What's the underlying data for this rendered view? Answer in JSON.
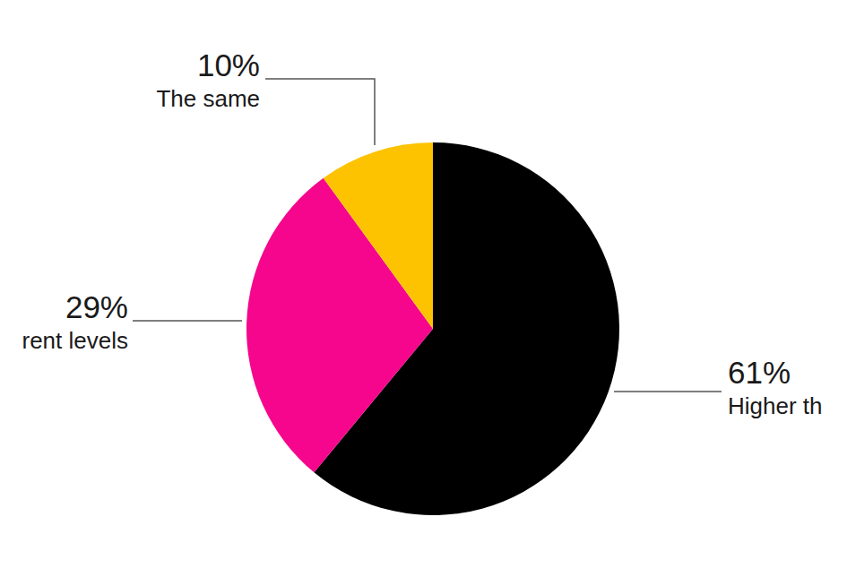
{
  "chart_data": {
    "type": "pie",
    "categories": [
      "Higher th",
      "rent levels",
      "The same"
    ],
    "values": [
      61,
      29,
      10
    ],
    "value_labels": [
      "61%",
      "29%",
      "10%"
    ],
    "colors": [
      "#000000",
      "#f5068c",
      "#fdc300"
    ],
    "data_labels": true,
    "legend": false
  }
}
